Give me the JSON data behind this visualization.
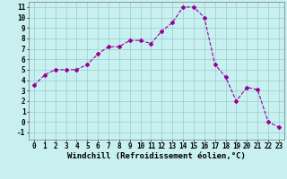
{
  "x": [
    0,
    1,
    2,
    3,
    4,
    5,
    6,
    7,
    8,
    9,
    10,
    11,
    12,
    13,
    14,
    15,
    16,
    17,
    18,
    19,
    20,
    21,
    22,
    23
  ],
  "y": [
    3.5,
    4.5,
    5.0,
    5.0,
    5.0,
    5.5,
    6.5,
    7.2,
    7.2,
    7.8,
    7.8,
    7.5,
    8.7,
    9.5,
    11.0,
    11.0,
    10.0,
    5.5,
    4.3,
    2.0,
    3.3,
    3.1,
    0.0,
    -0.5
  ],
  "line_color": "#990099",
  "marker": "D",
  "marker_size": 2.0,
  "bg_color": "#c8f0f0",
  "grid_color": "#99cccc",
  "xlabel": "Windchill (Refroidissement éolien,°C)",
  "xlabel_fontsize": 6.5,
  "ylabel_ticks": [
    -1,
    0,
    1,
    2,
    3,
    4,
    5,
    6,
    7,
    8,
    9,
    10,
    11
  ],
  "xlim": [
    -0.5,
    23.5
  ],
  "ylim": [
    -1.7,
    11.5
  ],
  "xtick_labels": [
    "0",
    "1",
    "2",
    "3",
    "4",
    "5",
    "6",
    "7",
    "8",
    "9",
    "10",
    "11",
    "12",
    "13",
    "14",
    "15",
    "16",
    "17",
    "18",
    "19",
    "20",
    "21",
    "22",
    "23"
  ],
  "tick_fontsize": 5.5,
  "linewidth": 0.8
}
